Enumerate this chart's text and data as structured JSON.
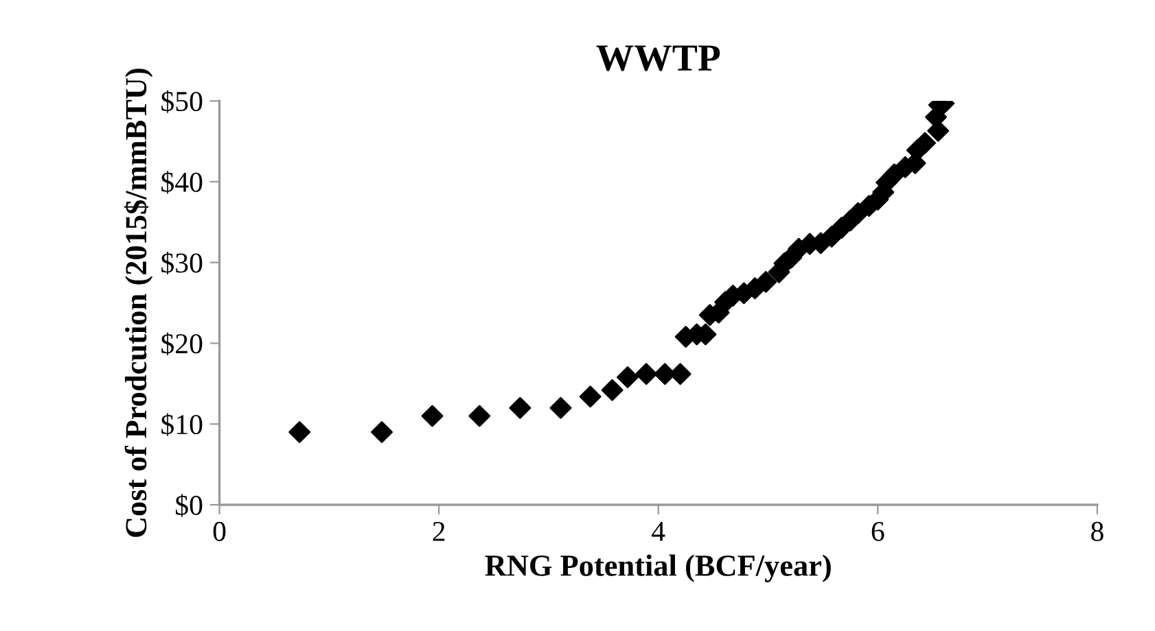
{
  "chart_data": {
    "type": "scatter",
    "title": "WWTP",
    "xlabel": "RNG Potential (BCF/year)",
    "ylabel": "Cost of Prodcution (2015$/mmBTU)",
    "marker": "diamond",
    "grid": false,
    "legend": false,
    "xlim": [
      0,
      8
    ],
    "xticks": [
      0,
      2,
      4,
      6,
      8
    ],
    "ylim": [
      0,
      50
    ],
    "yticks": [
      {
        "value": 0,
        "label": "$0"
      },
      {
        "value": 10,
        "label": "$10"
      },
      {
        "value": 20,
        "label": "$20"
      },
      {
        "value": 30,
        "label": "$30"
      },
      {
        "value": 40,
        "label": "$40"
      },
      {
        "value": 50,
        "label": "$50"
      }
    ],
    "series": [
      {
        "color": "#000000",
        "x": [
          0.73,
          1.48,
          1.94,
          2.37,
          2.74,
          3.11,
          3.38,
          3.58,
          3.72,
          3.89,
          4.06,
          4.2,
          4.25,
          4.35,
          4.43,
          4.47,
          4.55,
          4.61,
          4.68,
          4.78,
          4.88,
          4.98,
          5.05,
          5.1,
          5.15,
          5.21,
          5.28,
          5.38,
          5.48,
          5.58,
          5.67,
          5.75,
          5.82,
          5.92,
          6.0,
          6.05,
          6.08,
          6.15,
          6.25,
          6.34,
          6.36,
          6.43,
          6.5,
          6.55,
          6.53,
          6.56,
          6.6
        ],
        "values": [
          9,
          9,
          11,
          11,
          12,
          12,
          13.4,
          14.2,
          15.8,
          16.2,
          16.2,
          16.2,
          20.8,
          21.1,
          21.1,
          23.5,
          23.8,
          25.1,
          25.9,
          26.2,
          26.8,
          27.6,
          null,
          28.8,
          29.9,
          30.6,
          31.7,
          32.3,
          32.4,
          33.2,
          34.3,
          35.2,
          36.1,
          37,
          37.8,
          38.7,
          39.9,
          40.9,
          41.8,
          42.3,
          43.9,
          44.8,
          null,
          46.3,
          48,
          49.5,
          49.7
        ]
      }
    ]
  }
}
